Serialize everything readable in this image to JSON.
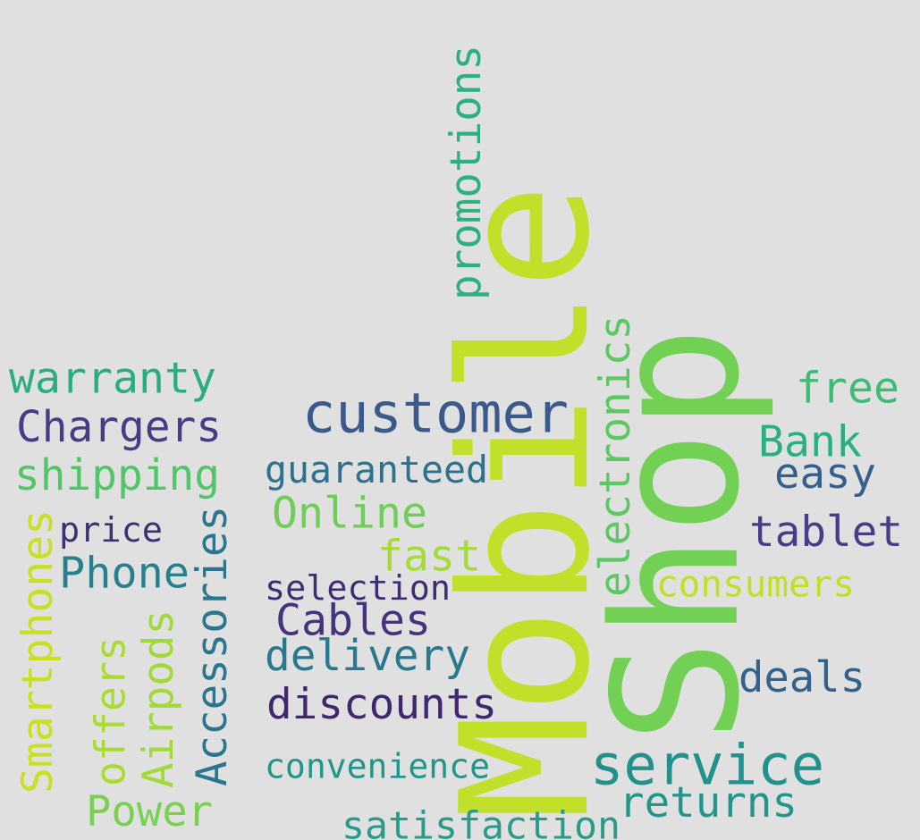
{
  "background": "#e0e0e0",
  "words": [
    {
      "text": "Mobile",
      "color": "#c0e02a",
      "vertical": true
    },
    {
      "text": "Shop",
      "color": "#72d054",
      "vertical": true
    },
    {
      "text": "customer",
      "color": "#3b5a8c",
      "vertical": false
    },
    {
      "text": "service",
      "color": "#21918c",
      "vertical": false
    },
    {
      "text": "promotions",
      "color": "#2cb17e",
      "vertical": true
    },
    {
      "text": "electronics",
      "color": "#5dc863",
      "vertical": true
    },
    {
      "text": "warranty",
      "color": "#2aad7f",
      "vertical": false
    },
    {
      "text": "Chargers",
      "color": "#433e85",
      "vertical": false
    },
    {
      "text": "shipping",
      "color": "#52c569",
      "vertical": false
    },
    {
      "text": "price",
      "color": "#3e2f72",
      "vertical": false
    },
    {
      "text": "Phone",
      "color": "#27808e",
      "vertical": false
    },
    {
      "text": "Smartphones",
      "color": "#c8e020",
      "vertical": true
    },
    {
      "text": "offers",
      "color": "#a8db34",
      "vertical": true
    },
    {
      "text": "Airpods",
      "color": "#a0da39",
      "vertical": true
    },
    {
      "text": "Accessories",
      "color": "#2b758e",
      "vertical": true
    },
    {
      "text": "Power",
      "color": "#7ad151",
      "vertical": false
    },
    {
      "text": "guaranteed",
      "color": "#2c728e",
      "vertical": false
    },
    {
      "text": "Online",
      "color": "#6ece58",
      "vertical": false
    },
    {
      "text": "fast",
      "color": "#a5db36",
      "vertical": false
    },
    {
      "text": "selection",
      "color": "#3f2d73",
      "vertical": false
    },
    {
      "text": "Cables",
      "color": "#46337e",
      "vertical": false
    },
    {
      "text": "delivery",
      "color": "#2a788e",
      "vertical": false
    },
    {
      "text": "discounts",
      "color": "#3f2870",
      "vertical": false
    },
    {
      "text": "convenience",
      "color": "#22968b",
      "vertical": false
    },
    {
      "text": "satisfaction",
      "color": "#2a9b8a",
      "vertical": false
    },
    {
      "text": "returns",
      "color": "#22968b",
      "vertical": false
    },
    {
      "text": "free",
      "color": "#3dbc74",
      "vertical": false
    },
    {
      "text": "Bank",
      "color": "#2ab07f",
      "vertical": false
    },
    {
      "text": "easy",
      "color": "#355f8d",
      "vertical": false
    },
    {
      "text": "tablet",
      "color": "#433e85",
      "vertical": false
    },
    {
      "text": "consumers",
      "color": "#c2df23",
      "vertical": false
    },
    {
      "text": "deals",
      "color": "#33628d",
      "vertical": false
    }
  ]
}
